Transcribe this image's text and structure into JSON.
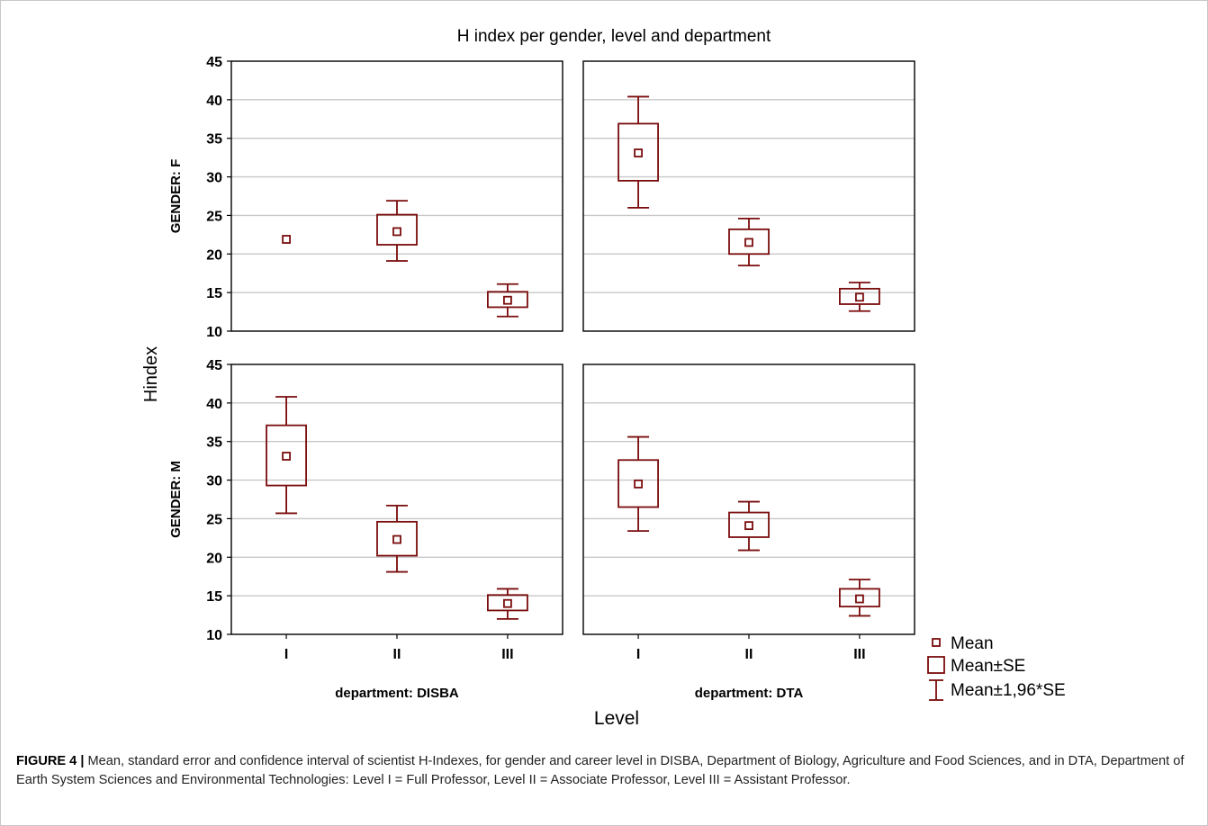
{
  "chart_data": {
    "type": "box",
    "title": "H index per gender, level and department",
    "ylabel": "Hindex",
    "xlabel": "Level",
    "ylim": [
      10,
      45
    ],
    "yticks": [
      10,
      15,
      20,
      25,
      30,
      35,
      40,
      45
    ],
    "categories": [
      "I",
      "II",
      "III"
    ],
    "colors": {
      "series": "#7a0c0c",
      "grid": "#c8c8c8",
      "frame": "#000000"
    },
    "legend": {
      "placement": "bottom-right",
      "items": [
        {
          "label": "Mean",
          "symbol": "small-square"
        },
        {
          "label": "Mean±SE",
          "symbol": "box"
        },
        {
          "label": "Mean±1,96*SE",
          "symbol": "whisker"
        }
      ]
    },
    "panels": [
      {
        "row": 0,
        "col": 0,
        "row_label": "GENDER: F",
        "col_label": "department: DISBA",
        "points": [
          {
            "x": "I",
            "mean": 21.9,
            "se_low": 21.9,
            "se_high": 21.9,
            "ci_low": 21.9,
            "ci_high": 21.9
          },
          {
            "x": "II",
            "mean": 22.9,
            "se_low": 21.2,
            "se_high": 25.1,
            "ci_low": 19.1,
            "ci_high": 26.9
          },
          {
            "x": "III",
            "mean": 14.0,
            "se_low": 13.1,
            "se_high": 15.1,
            "ci_low": 11.9,
            "ci_high": 16.1
          }
        ]
      },
      {
        "row": 0,
        "col": 1,
        "row_label": "GENDER: F",
        "col_label": "department: DTA",
        "points": [
          {
            "x": "I",
            "mean": 33.1,
            "se_low": 29.5,
            "se_high": 36.9,
            "ci_low": 26.0,
            "ci_high": 40.4
          },
          {
            "x": "II",
            "mean": 21.5,
            "se_low": 20.0,
            "se_high": 23.2,
            "ci_low": 18.5,
            "ci_high": 24.6
          },
          {
            "x": "III",
            "mean": 14.4,
            "se_low": 13.5,
            "se_high": 15.5,
            "ci_low": 12.6,
            "ci_high": 16.3
          }
        ]
      },
      {
        "row": 1,
        "col": 0,
        "row_label": "GENDER: M",
        "col_label": "department: DISBA",
        "points": [
          {
            "x": "I",
            "mean": 33.1,
            "se_low": 29.3,
            "se_high": 37.1,
            "ci_low": 25.7,
            "ci_high": 40.8
          },
          {
            "x": "II",
            "mean": 22.3,
            "se_low": 20.2,
            "se_high": 24.6,
            "ci_low": 18.1,
            "ci_high": 26.7
          },
          {
            "x": "III",
            "mean": 14.0,
            "se_low": 13.1,
            "se_high": 15.1,
            "ci_low": 12.0,
            "ci_high": 15.9
          }
        ]
      },
      {
        "row": 1,
        "col": 1,
        "row_label": "GENDER: M",
        "col_label": "department: DTA",
        "points": [
          {
            "x": "I",
            "mean": 29.5,
            "se_low": 26.5,
            "se_high": 32.6,
            "ci_low": 23.4,
            "ci_high": 35.6
          },
          {
            "x": "II",
            "mean": 24.1,
            "se_low": 22.6,
            "se_high": 25.8,
            "ci_low": 20.9,
            "ci_high": 27.2
          },
          {
            "x": "III",
            "mean": 14.6,
            "se_low": 13.6,
            "se_high": 15.9,
            "ci_low": 12.4,
            "ci_high": 17.1
          }
        ]
      }
    ]
  },
  "caption": {
    "label": "FIGURE 4 |",
    "text": "Mean, standard error and confidence interval of scientist H-Indexes, for gender and career level in DISBA, Department of Biology, Agriculture and Food Sciences, and in DTA, Department of Earth System Sciences and Environmental Technologies: Level I = Full Professor, Level II = Associate Professor, Level III = Assistant Professor."
  }
}
